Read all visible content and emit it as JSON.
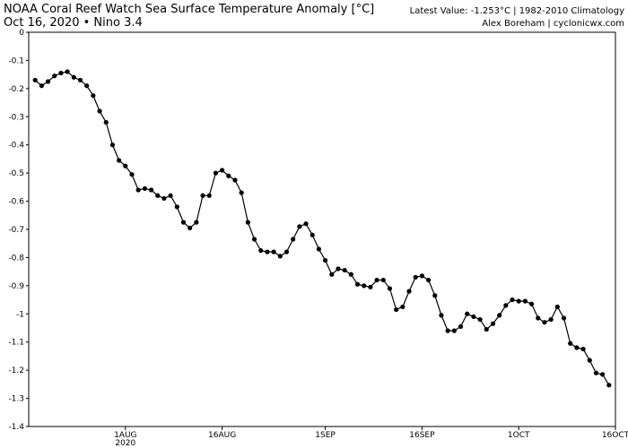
{
  "chart_data": {
    "type": "line",
    "title": "NOAA Coral Reef Watch Sea Surface Temperature Anomaly [°C]",
    "subtitle": "Oct 16, 2020 • Nino 3.4",
    "info_line_1": "Latest Value: -1.253°C | 1982-2010 Climatology",
    "info_line_2": "Alex Boreham | cyclonicwx.com",
    "x_year_label": "2020",
    "color": "#000000",
    "markers": true,
    "grid": false,
    "x": [
      "2020-07-18",
      "2020-07-19",
      "2020-07-20",
      "2020-07-21",
      "2020-07-22",
      "2020-07-23",
      "2020-07-24",
      "2020-07-25",
      "2020-07-26",
      "2020-07-27",
      "2020-07-28",
      "2020-07-29",
      "2020-07-30",
      "2020-07-31",
      "2020-08-01",
      "2020-08-02",
      "2020-08-03",
      "2020-08-04",
      "2020-08-05",
      "2020-08-06",
      "2020-08-07",
      "2020-08-08",
      "2020-08-09",
      "2020-08-10",
      "2020-08-11",
      "2020-08-12",
      "2020-08-13",
      "2020-08-14",
      "2020-08-15",
      "2020-08-16",
      "2020-08-17",
      "2020-08-18",
      "2020-08-19",
      "2020-08-20",
      "2020-08-21",
      "2020-08-22",
      "2020-08-23",
      "2020-08-24",
      "2020-08-25",
      "2020-08-26",
      "2020-08-27",
      "2020-08-28",
      "2020-08-29",
      "2020-08-30",
      "2020-08-31",
      "2020-09-01",
      "2020-09-02",
      "2020-09-03",
      "2020-09-04",
      "2020-09-05",
      "2020-09-06",
      "2020-09-07",
      "2020-09-08",
      "2020-09-09",
      "2020-09-10",
      "2020-09-11",
      "2020-09-12",
      "2020-09-13",
      "2020-09-14",
      "2020-09-15",
      "2020-09-16",
      "2020-09-17",
      "2020-09-18",
      "2020-09-19",
      "2020-09-20",
      "2020-09-21",
      "2020-09-22",
      "2020-09-23",
      "2020-09-24",
      "2020-09-25",
      "2020-09-26",
      "2020-09-27",
      "2020-09-28",
      "2020-09-29",
      "2020-09-30",
      "2020-10-01",
      "2020-10-02",
      "2020-10-03",
      "2020-10-04",
      "2020-10-05",
      "2020-10-06",
      "2020-10-07",
      "2020-10-08",
      "2020-10-09",
      "2020-10-10",
      "2020-10-11",
      "2020-10-12",
      "2020-10-13",
      "2020-10-14",
      "2020-10-15"
    ],
    "values": [
      -0.17,
      -0.19,
      -0.175,
      -0.155,
      -0.145,
      -0.14,
      -0.16,
      -0.17,
      -0.19,
      -0.225,
      -0.28,
      -0.32,
      -0.4,
      -0.455,
      -0.475,
      -0.505,
      -0.56,
      -0.555,
      -0.56,
      -0.58,
      -0.59,
      -0.58,
      -0.62,
      -0.675,
      -0.695,
      -0.675,
      -0.58,
      -0.58,
      -0.5,
      -0.49,
      -0.51,
      -0.525,
      -0.57,
      -0.675,
      -0.735,
      -0.775,
      -0.78,
      -0.78,
      -0.795,
      -0.78,
      -0.735,
      -0.69,
      -0.68,
      -0.72,
      -0.77,
      -0.81,
      -0.86,
      -0.84,
      -0.845,
      -0.86,
      -0.895,
      -0.9,
      -0.905,
      -0.88,
      -0.88,
      -0.91,
      -0.985,
      -0.975,
      -0.92,
      -0.87,
      -0.865,
      -0.88,
      -0.935,
      -1.005,
      -1.06,
      -1.06,
      -1.045,
      -1.0,
      -1.01,
      -1.02,
      -1.055,
      -1.035,
      -1.005,
      -0.97,
      -0.95,
      -0.955,
      -0.955,
      -0.965,
      -1.015,
      -1.03,
      -1.02,
      -0.975,
      -1.015,
      -1.105,
      -1.12,
      -1.125,
      -1.165,
      -1.21,
      -1.215,
      -1.253
    ],
    "xlim": [
      "2020-07-17",
      "2020-10-16"
    ],
    "xticks": [
      {
        "value": "2020-08-01",
        "label": "1AUG"
      },
      {
        "value": "2020-08-16",
        "label": "16AUG"
      },
      {
        "value": "2020-09-01",
        "label": "1SEP"
      },
      {
        "value": "2020-09-16",
        "label": "16SEP"
      },
      {
        "value": "2020-10-01",
        "label": "1OCT"
      },
      {
        "value": "2020-10-16",
        "label": "16OCT"
      }
    ],
    "ylim": [
      -1.4,
      0
    ],
    "yticks": [
      0,
      -0.1,
      -0.2,
      -0.3,
      -0.4,
      -0.5,
      -0.6,
      -0.7,
      -0.8,
      -0.9,
      -1,
      -1.1,
      -1.2,
      -1.3,
      -1.4
    ]
  }
}
